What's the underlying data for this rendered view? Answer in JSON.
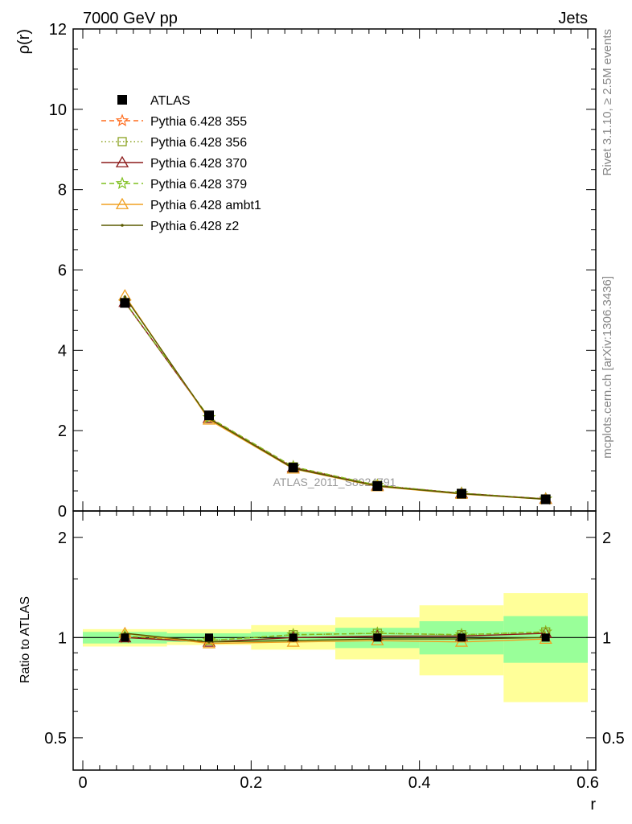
{
  "header": {
    "left": "7000 GeV pp",
    "right": "Jets"
  },
  "side": {
    "rivet": "Rivet 3.1.10, ≥ 2.5M events",
    "mcplots": "mcplots.cern.ch [arXiv:1306.3436]"
  },
  "chart_data": [
    {
      "type": "line",
      "ylabel": "ρ(r)",
      "xlabel": "",
      "watermark": "ATLAS_2011_S8924791",
      "xlim": [
        0,
        0.6
      ],
      "ylim": [
        0,
        12
      ],
      "yticks": [
        0,
        2,
        4,
        6,
        8,
        10,
        12
      ],
      "ytick_labels": [
        "0",
        "2",
        "4",
        "6",
        "8",
        "10",
        "12"
      ],
      "x": [
        0.05,
        0.15,
        0.25,
        0.35,
        0.45,
        0.55
      ],
      "legend_position": "top-left",
      "series": [
        {
          "name": "ATLAS",
          "color": "#000000",
          "marker": "filled-square",
          "line": "none",
          "values": [
            5.18,
            2.38,
            1.08,
            0.62,
            0.43,
            0.29
          ]
        },
        {
          "name": "Pythia 6.428 355",
          "color": "#ff6d1f",
          "marker": "star",
          "line": "dashed",
          "values": [
            5.2,
            2.33,
            1.1,
            0.64,
            0.44,
            0.3
          ]
        },
        {
          "name": "Pythia 6.428 356",
          "color": "#8aa11f",
          "marker": "open-square",
          "line": "dotted",
          "values": [
            5.19,
            2.32,
            1.1,
            0.64,
            0.44,
            0.3
          ]
        },
        {
          "name": "Pythia 6.428 370",
          "color": "#8b1a1a",
          "marker": "open-triangle",
          "line": "solid",
          "values": [
            5.2,
            2.31,
            1.08,
            0.63,
            0.44,
            0.3
          ]
        },
        {
          "name": "Pythia 6.428 379",
          "color": "#7fbf1f",
          "marker": "star",
          "line": "dashed",
          "values": [
            5.21,
            2.33,
            1.1,
            0.64,
            0.44,
            0.3
          ]
        },
        {
          "name": "Pythia 6.428 ambt1",
          "color": "#f0a020",
          "marker": "open-triangle",
          "line": "solid",
          "values": [
            5.36,
            2.27,
            1.05,
            0.61,
            0.42,
            0.29
          ]
        },
        {
          "name": "Pythia 6.428 z2",
          "color": "#5a5a00",
          "marker": "dot",
          "line": "solid",
          "values": [
            5.33,
            2.3,
            1.06,
            0.62,
            0.43,
            0.29
          ]
        }
      ]
    },
    {
      "type": "line",
      "ylabel": "Ratio to ATLAS",
      "xlabel": "r",
      "xlim": [
        0,
        0.6
      ],
      "ylim": [
        0.4,
        2.4
      ],
      "log_y": true,
      "yticks": [
        0.5,
        1,
        2
      ],
      "ytick_labels": [
        "0.5",
        "1",
        "2"
      ],
      "xticks": [
        0,
        0.2,
        0.4,
        0.6
      ],
      "xtick_labels": [
        "0",
        "0.2",
        "0.4",
        "0.6"
      ],
      "x": [
        0.05,
        0.15,
        0.25,
        0.35,
        0.45,
        0.55
      ],
      "bands": {
        "bin_edges": [
          0,
          0.1,
          0.2,
          0.3,
          0.4,
          0.5,
          0.6
        ],
        "stat_low": [
          0.96,
          0.97,
          0.97,
          0.93,
          0.89,
          0.84
        ],
        "stat_high": [
          1.04,
          1.03,
          1.04,
          1.07,
          1.12,
          1.16
        ],
        "total_low": [
          0.94,
          0.95,
          0.92,
          0.86,
          0.77,
          0.64
        ],
        "total_high": [
          1.06,
          1.06,
          1.09,
          1.15,
          1.25,
          1.36
        ],
        "stat_color": "#99ff99",
        "total_color": "#ffff99"
      },
      "series": [
        {
          "name": "Pythia 6.428 355",
          "color": "#ff6d1f",
          "marker": "star",
          "line": "dashed",
          "values": [
            1.0,
            0.98,
            1.02,
            1.03,
            1.02,
            1.04
          ]
        },
        {
          "name": "Pythia 6.428 356",
          "color": "#8aa11f",
          "marker": "open-square",
          "line": "dotted",
          "values": [
            1.0,
            0.98,
            1.02,
            1.03,
            1.02,
            1.04
          ]
        },
        {
          "name": "Pythia 6.428 370",
          "color": "#8b1a1a",
          "marker": "open-triangle",
          "line": "solid",
          "values": [
            1.0,
            0.97,
            1.0,
            1.01,
            1.01,
            1.03
          ]
        },
        {
          "name": "Pythia 6.428 379",
          "color": "#7fbf1f",
          "marker": "star",
          "line": "dashed",
          "values": [
            1.01,
            0.98,
            1.02,
            1.03,
            1.02,
            1.04
          ]
        },
        {
          "name": "Pythia 6.428 ambt1",
          "color": "#f0a020",
          "marker": "open-triangle",
          "line": "solid",
          "values": [
            1.03,
            0.96,
            0.97,
            0.98,
            0.97,
            0.99
          ]
        },
        {
          "name": "Pythia 6.428 z2",
          "color": "#5a5a00",
          "marker": "dot",
          "line": "solid",
          "values": [
            1.03,
            0.97,
            0.98,
            0.99,
            0.99,
            1.0
          ]
        }
      ]
    }
  ]
}
